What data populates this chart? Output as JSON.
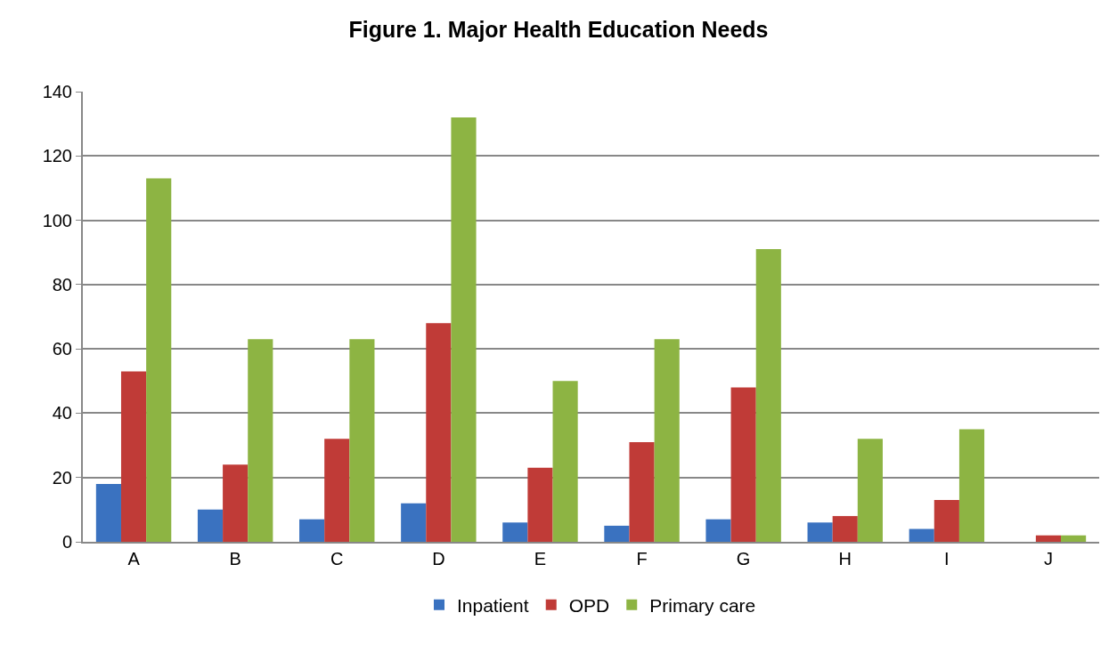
{
  "chart_data": {
    "type": "bar",
    "title": "Figure 1. Major Health Education Needs",
    "categories": [
      "A",
      "B",
      "C",
      "D",
      "E",
      "F",
      "G",
      "H",
      "I",
      "J"
    ],
    "series": [
      {
        "name": "Inpatient",
        "color": "#3a72c0",
        "values": [
          18,
          10,
          7,
          12,
          6,
          5,
          7,
          6,
          4,
          0
        ]
      },
      {
        "name": "OPD",
        "color": "#c03b37",
        "values": [
          53,
          24,
          32,
          68,
          23,
          31,
          48,
          8,
          13,
          2
        ]
      },
      {
        "name": "Primary care",
        "color": "#8db443",
        "values": [
          113,
          63,
          63,
          132,
          50,
          63,
          91,
          32,
          35,
          2
        ]
      }
    ],
    "ylim": [
      0,
      140
    ],
    "yticks": [
      0,
      20,
      40,
      60,
      80,
      100,
      120,
      140
    ],
    "grid": "y",
    "legend": "bottom"
  }
}
